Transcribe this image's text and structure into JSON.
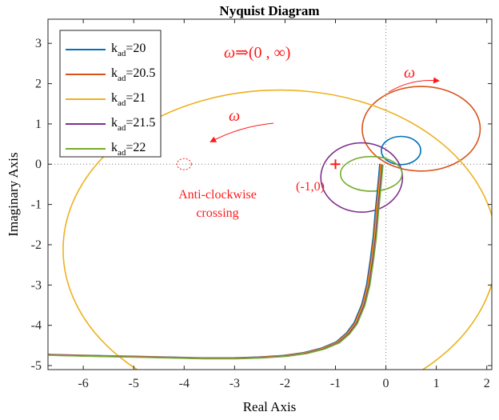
{
  "chart_data": {
    "type": "line",
    "title": "Nyquist Diagram",
    "xlabel": "Real Axis",
    "ylabel": "Imaginary Axis",
    "xlim": [
      -6.7,
      2.1
    ],
    "ylim": [
      -5.1,
      3.6
    ],
    "xticks": [
      "-6",
      "-5",
      "-4",
      "-3",
      "-2",
      "-1",
      "0",
      "1",
      "2"
    ],
    "xtick_values": [
      -6,
      -5,
      -4,
      -3,
      -2,
      -1,
      0,
      1,
      2
    ],
    "yticks": [
      "3",
      "2",
      "1",
      "0",
      "-1",
      "-2",
      "-3",
      "-4",
      "-5"
    ],
    "ytick_values": [
      3,
      2,
      1,
      0,
      -1,
      -2,
      -3,
      -4,
      -5
    ],
    "grid": false,
    "zero_lines": "dotted",
    "legend_position": "top-left",
    "legend": [
      {
        "base": "k",
        "sub": "ad",
        "value": "=20",
        "color": "#0072BD"
      },
      {
        "base": "k",
        "sub": "ad",
        "value": "=20.5",
        "color": "#D95319"
      },
      {
        "base": "k",
        "sub": "ad",
        "value": "=21",
        "color": "#EDB120"
      },
      {
        "base": "k",
        "sub": "ad",
        "value": "=21.5",
        "color": "#7E2F8E"
      },
      {
        "base": "k",
        "sub": "ad",
        "value": "=22",
        "color": "#77AC30"
      }
    ],
    "series": [
      {
        "color": "#0072BD",
        "loop": {
          "cx": 0.3,
          "cy": 0.34,
          "rx": 0.78,
          "ry": 0.7
        }
      },
      {
        "color": "#D95319",
        "loop": {
          "cx": 0.7,
          "cy": 0.88,
          "rx": 2.34,
          "ry": 2.1
        }
      },
      {
        "color": "#EDB120",
        "loop": {
          "cx": -2.1,
          "cy": -2.12,
          "rx": 8.6,
          "ry": 7.92
        }
      },
      {
        "color": "#7E2F8E",
        "loop": {
          "cx": -0.48,
          "cy": -0.33,
          "rx": 1.62,
          "ry": 1.72
        }
      },
      {
        "color": "#77AC30",
        "loop": {
          "cx": -0.29,
          "cy": -0.24,
          "rx": 1.22,
          "ry": 0.86
        }
      }
    ],
    "tail": {
      "x": [
        -0.09,
        -0.11,
        -0.14,
        -0.18,
        -0.22,
        -0.28,
        -0.35,
        -0.45,
        -0.6,
        -0.75,
        -0.95,
        -1.25,
        -1.6,
        -2.0,
        -2.5,
        -3.0,
        -3.6,
        -4.3,
        -5.0,
        -5.8,
        -6.5,
        -6.7
      ],
      "y": [
        0.0,
        -0.3,
        -0.7,
        -1.2,
        -1.8,
        -2.4,
        -3.0,
        -3.5,
        -3.95,
        -4.2,
        -4.42,
        -4.58,
        -4.69,
        -4.76,
        -4.8,
        -4.82,
        -4.82,
        -4.8,
        -4.78,
        -4.76,
        -4.74,
        -4.73
      ]
    },
    "critical_point": {
      "x": -1,
      "y": 0,
      "label": "(-1,0)"
    },
    "annotations": {
      "range_symbol": "ω",
      "range_text": "⇒(0 , ∞)",
      "omega_label": "ω",
      "crossing_line1": "Anti-clockwise",
      "crossing_line2": "crossing",
      "crossing_point": {
        "x": -4.0,
        "y": 0.0
      }
    }
  }
}
